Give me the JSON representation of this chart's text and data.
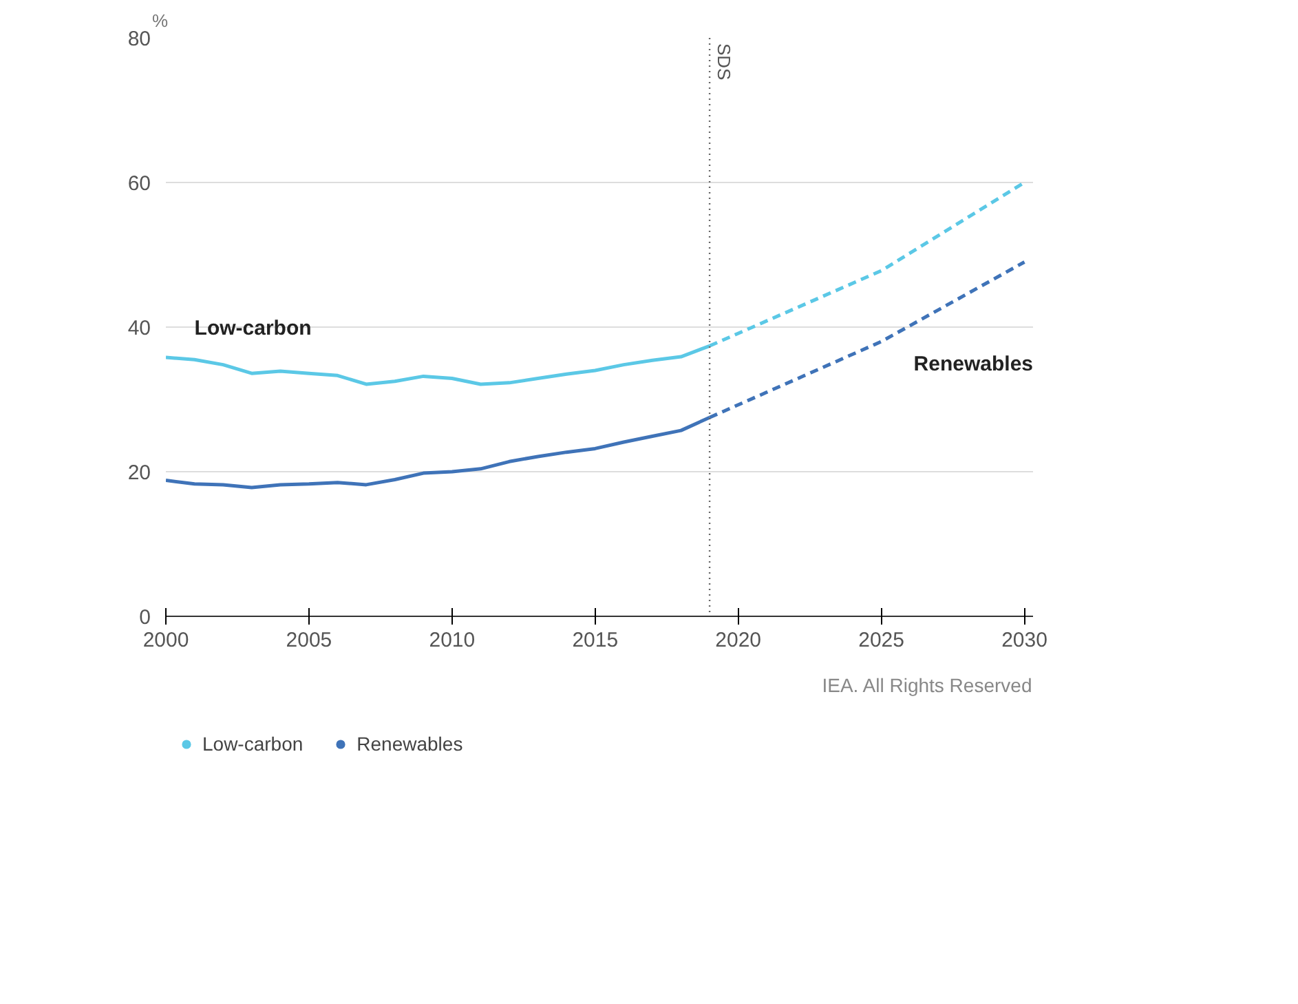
{
  "chart_data": {
    "type": "line",
    "ylabel": "%",
    "xlim": [
      2000,
      2030.3
    ],
    "xticks": [
      2000,
      2005,
      2010,
      2015,
      2020,
      2025,
      2030
    ],
    "ylim": [
      0,
      80
    ],
    "yticks": [
      0,
      20,
      40,
      60,
      80
    ],
    "grid": "y",
    "legend": "bottom left",
    "series": [
      {
        "name": "Low-carbon",
        "color": "#5bc8e6",
        "line_style": "solid",
        "x": [
          2000,
          2001,
          2002,
          2003,
          2004,
          2005,
          2006,
          2007,
          2008,
          2009,
          2010,
          2011,
          2012,
          2013,
          2014,
          2015,
          2016,
          2017,
          2018,
          2019
        ],
        "values": [
          35.8,
          35.5,
          34.8,
          33.6,
          33.9,
          33.6,
          33.3,
          32.1,
          32.5,
          33.2,
          32.9,
          32.1,
          32.3,
          32.9,
          33.5,
          34.0,
          34.8,
          35.4,
          35.9,
          37.4
        ]
      },
      {
        "name": "Renewables",
        "color": "#3f73b8",
        "line_style": "solid",
        "x": [
          2000,
          2001,
          2002,
          2003,
          2004,
          2005,
          2006,
          2007,
          2008,
          2009,
          2010,
          2011,
          2012,
          2013,
          2014,
          2015,
          2016,
          2017,
          2018,
          2019
        ],
        "values": [
          18.8,
          18.3,
          18.2,
          17.8,
          18.2,
          18.3,
          18.5,
          18.2,
          18.9,
          19.8,
          20.0,
          20.4,
          21.4,
          22.1,
          22.7,
          23.2,
          24.1,
          24.9,
          25.7,
          27.5
        ]
      },
      {
        "color": "#5bc8e6",
        "line_style": "dashed",
        "x": [
          2019,
          2025,
          2030
        ],
        "values": [
          37.4,
          47.8,
          60
        ]
      },
      {
        "color": "#3f73b8",
        "line_style": "dashed",
        "x": [
          2019,
          2025,
          2030
        ],
        "values": [
          27.5,
          38,
          49
        ]
      }
    ],
    "ref_lines": [
      {
        "axis": "x",
        "value": 2019,
        "label": "SDS",
        "color": "#666666",
        "line_style": "dotted"
      }
    ],
    "annotations": [
      "IEA. All Rights Reserved"
    ]
  }
}
